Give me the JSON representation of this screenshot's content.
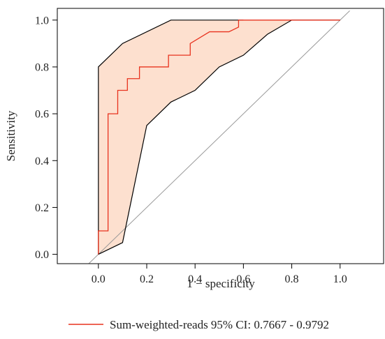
{
  "chart_data": {
    "type": "line",
    "xlabel": "1 − specificity",
    "ylabel": "Sensitivity",
    "xlim": [
      -0.17,
      1.18
    ],
    "ylim": [
      -0.04,
      1.05
    ],
    "x_ticks": [
      0.0,
      0.2,
      0.4,
      0.6,
      0.8,
      1.0
    ],
    "y_ticks": [
      0.0,
      0.2,
      0.4,
      0.6,
      0.8,
      1.0
    ],
    "x_tick_labels": [
      "0.0",
      "0.2",
      "0.4",
      "0.6",
      "0.8",
      "1.0"
    ],
    "y_tick_labels": [
      "0.0",
      "0.2",
      "0.4",
      "0.6",
      "0.8",
      "1.0"
    ],
    "grid": false,
    "legend_position": "bottom",
    "series": [
      {
        "name": "Sum-weighted-reads 95% CI: 0.7667 - 0.9792",
        "kind": "roc-step",
        "color": "#e8321e",
        "x": [
          0.0,
          0.0,
          0.04,
          0.04,
          0.08,
          0.08,
          0.12,
          0.12,
          0.17,
          0.17,
          0.29,
          0.29,
          0.33,
          0.33,
          0.38,
          0.38,
          0.46,
          0.46,
          0.54,
          0.54,
          0.58,
          0.58,
          0.79,
          1.0
        ],
        "y": [
          0.0,
          0.1,
          0.1,
          0.6,
          0.6,
          0.7,
          0.7,
          0.75,
          0.75,
          0.8,
          0.8,
          0.85,
          0.85,
          0.85,
          0.85,
          0.9,
          0.95,
          0.95,
          0.95,
          0.95,
          0.97,
          1.0,
          1.0,
          1.0
        ]
      },
      {
        "kind": "ci-upper",
        "color": "#000000",
        "x": [
          0.0,
          0.0,
          0.1,
          0.3,
          0.6
        ],
        "y": [
          0.0,
          0.8,
          0.9,
          1.0,
          1.0
        ]
      },
      {
        "kind": "ci-lower",
        "color": "#000000",
        "x": [
          0.0,
          0.1,
          0.2,
          0.3,
          0.4,
          0.5,
          0.6,
          0.7,
          0.8,
          1.0
        ],
        "y": [
          0.0,
          0.05,
          0.55,
          0.65,
          0.7,
          0.8,
          0.85,
          0.94,
          1.0,
          1.0
        ]
      },
      {
        "kind": "diagonal",
        "color": "#999999",
        "x": [
          -0.04,
          1.04
        ],
        "y": [
          -0.04,
          1.04
        ]
      }
    ],
    "ci_fill_color": "#fde0cf"
  }
}
